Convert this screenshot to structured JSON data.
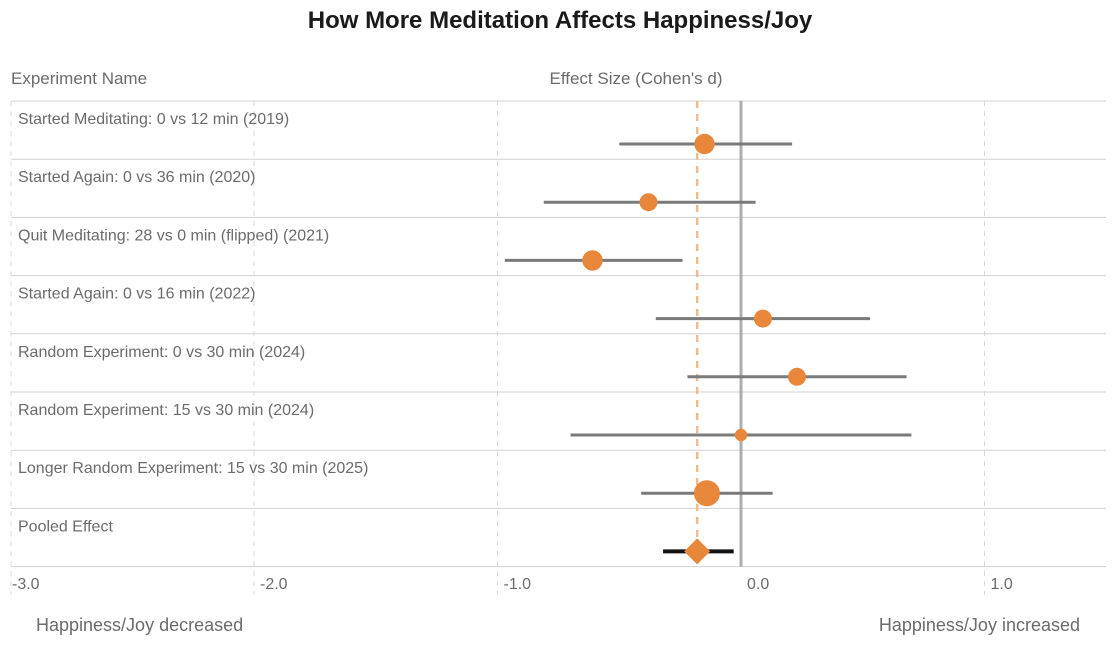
{
  "chart_data": {
    "type": "forest",
    "title": "How More Meditation Affects Happiness/Joy",
    "label_column_header": "Experiment Name",
    "xlabel": "Effect Size (Cohen's d)",
    "xlim": [
      -3.0,
      1.5
    ],
    "ticks": [
      -3.0,
      -2.0,
      -1.0,
      0.0,
      1.0
    ],
    "tick_labels": [
      "-3.0",
      "-2.0",
      "-1.0",
      "0.0",
      "1.0"
    ],
    "grid": true,
    "left_direction_label": "Happiness/Joy decreased",
    "right_direction_label": "Happiness/Joy increased",
    "null_line": 0.0,
    "pooled_reference_line": -0.18,
    "experiments": [
      {
        "name": "Started Meditating: 0 vs 12 min (2019)",
        "effect": -0.15,
        "ci_low": -0.5,
        "ci_high": 0.21,
        "weight": 0.65
      },
      {
        "name": "Started Again: 0 vs 36 min (2020)",
        "effect": -0.38,
        "ci_low": -0.81,
        "ci_high": 0.06,
        "weight": 0.5
      },
      {
        "name": "Quit Meditating: 28 vs 0 min (flipped) (2021)",
        "effect": -0.61,
        "ci_low": -0.97,
        "ci_high": -0.24,
        "weight": 0.65
      },
      {
        "name": "Started Again: 0 vs 16 min (2022)",
        "effect": 0.09,
        "ci_low": -0.35,
        "ci_high": 0.53,
        "weight": 0.5
      },
      {
        "name": "Random Experiment: 0 vs 30 min (2024)",
        "effect": 0.23,
        "ci_low": -0.22,
        "ci_high": 0.68,
        "weight": 0.5
      },
      {
        "name": "Random Experiment: 15 vs 30 min (2024)",
        "effect": 0.0,
        "ci_low": -0.7,
        "ci_high": 0.7,
        "weight": 0.15
      },
      {
        "name": "Longer Random Experiment: 15 vs 30 min (2025)",
        "effect": -0.14,
        "ci_low": -0.41,
        "ci_high": 0.13,
        "weight": 1.0
      }
    ],
    "pooled": {
      "name": "Pooled Effect",
      "effect": -0.18,
      "ci_low": -0.32,
      "ci_high": -0.03
    },
    "colors": {
      "point": "#e8873a",
      "ci_line": "#7a7a7a",
      "pooled_ci_line": "#111111",
      "reference_line": "#f2b98a",
      "null_line": "#9a9a9a",
      "grid": "#d9d9d9",
      "row_line": "#d0d0d0"
    }
  }
}
